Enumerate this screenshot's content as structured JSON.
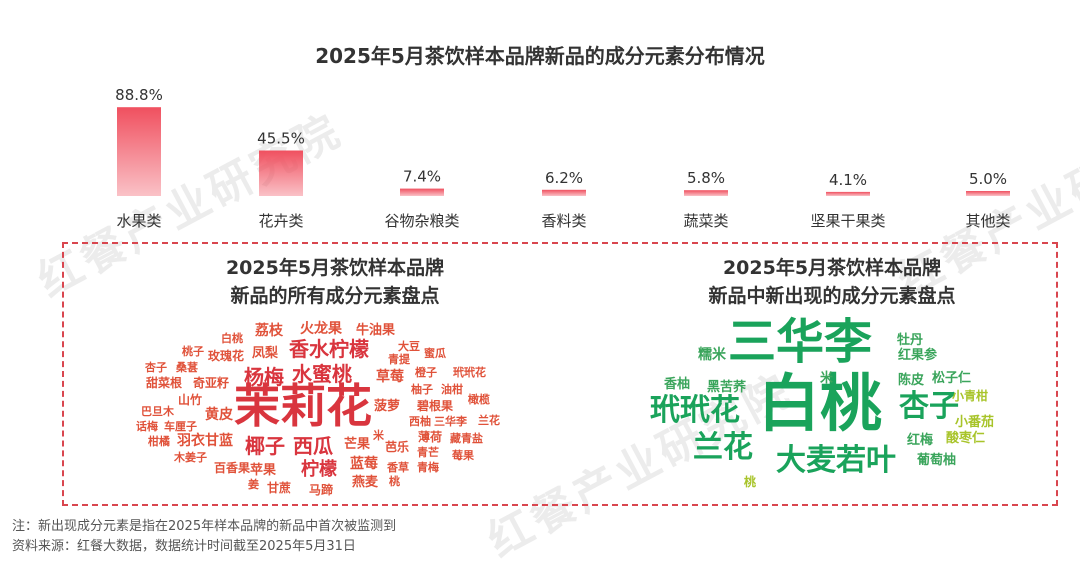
{
  "title": "2025年5月茶饮样本品牌新品的成分元素分布情况",
  "watermark": "红餐产业研究院",
  "chart_data": {
    "type": "bar",
    "categories": [
      "水果类",
      "花卉类",
      "谷物杂粮类",
      "香料类",
      "蔬菜类",
      "坚果干果类",
      "其他类"
    ],
    "values": [
      88.8,
      45.5,
      7.4,
      6.2,
      5.8,
      4.1,
      5.0
    ],
    "value_labels": [
      "88.8%",
      "45.5%",
      "7.4%",
      "6.2%",
      "5.8%",
      "4.1%",
      "5.0%"
    ],
    "ylim": [
      0,
      100
    ],
    "bar_color": "#f0505f"
  },
  "left_panel": {
    "title_line1": "2025年5月茶饮样本品牌",
    "title_line2": "新品的所有成分元素盘点",
    "words": [
      {
        "text": "茉莉花",
        "color": "#d9353e"
      },
      {
        "text": "香水柠檬",
        "color": "#d9353e"
      },
      {
        "text": "杨梅",
        "color": "#d9353e"
      },
      {
        "text": "水蜜桃",
        "color": "#d9353e"
      },
      {
        "text": "椰子",
        "color": "#d9353e"
      },
      {
        "text": "西瓜",
        "color": "#d9353e"
      },
      {
        "text": "柠檬",
        "color": "#d9353e"
      },
      {
        "text": "荔枝",
        "color": "#e0523a"
      },
      {
        "text": "火龙果",
        "color": "#e0523a"
      },
      {
        "text": "牛油果",
        "color": "#e0523a"
      },
      {
        "text": "白桃",
        "color": "#e0523a"
      },
      {
        "text": "玫瑰花",
        "color": "#e0523a"
      },
      {
        "text": "凤梨",
        "color": "#e0523a"
      },
      {
        "text": "大豆",
        "color": "#e0523a"
      },
      {
        "text": "青提",
        "color": "#e0523a"
      },
      {
        "text": "蜜瓜",
        "color": "#e0523a"
      },
      {
        "text": "桃子",
        "color": "#e0523a"
      },
      {
        "text": "杏子",
        "color": "#e0523a"
      },
      {
        "text": "桑葚",
        "color": "#e0523a"
      },
      {
        "text": "草莓",
        "color": "#e0523a"
      },
      {
        "text": "橙子",
        "color": "#e0523a"
      },
      {
        "text": "玳玳花",
        "color": "#e0523a"
      },
      {
        "text": "甜菜根",
        "color": "#e0523a"
      },
      {
        "text": "奇亚籽",
        "color": "#e0523a"
      },
      {
        "text": "柚子",
        "color": "#e0523a"
      },
      {
        "text": "油柑",
        "color": "#e0523a"
      },
      {
        "text": "山竹",
        "color": "#e0523a"
      },
      {
        "text": "菠萝",
        "color": "#e0523a"
      },
      {
        "text": "碧根果",
        "color": "#e0523a"
      },
      {
        "text": "橄榄",
        "color": "#e0523a"
      },
      {
        "text": "巴旦木",
        "color": "#e0523a"
      },
      {
        "text": "黄皮",
        "color": "#e0523a"
      },
      {
        "text": "西柚",
        "color": "#e0523a"
      },
      {
        "text": "三华李",
        "color": "#e0523a"
      },
      {
        "text": "兰花",
        "color": "#e0523a"
      },
      {
        "text": "话梅",
        "color": "#e0523a"
      },
      {
        "text": "车厘子",
        "color": "#e0523a"
      },
      {
        "text": "米",
        "color": "#e0523a"
      },
      {
        "text": "薄荷",
        "color": "#e0523a"
      },
      {
        "text": "藏青盐",
        "color": "#e0523a"
      },
      {
        "text": "柑橘",
        "color": "#e0523a"
      },
      {
        "text": "羽衣甘蓝",
        "color": "#e0523a"
      },
      {
        "text": "芒果",
        "color": "#e0523a"
      },
      {
        "text": "芭乐",
        "color": "#e0523a"
      },
      {
        "text": "青芒",
        "color": "#e0523a"
      },
      {
        "text": "莓果",
        "color": "#e0523a"
      },
      {
        "text": "木姜子",
        "color": "#e0523a"
      },
      {
        "text": "蓝莓",
        "color": "#e0523a"
      },
      {
        "text": "百香果",
        "color": "#e0523a"
      },
      {
        "text": "苹果",
        "color": "#e0523a"
      },
      {
        "text": "香草",
        "color": "#e0523a"
      },
      {
        "text": "青梅",
        "color": "#e0523a"
      },
      {
        "text": "燕麦",
        "color": "#e0523a"
      },
      {
        "text": "姜",
        "color": "#e0523a"
      },
      {
        "text": "甘蔗",
        "color": "#e0523a"
      },
      {
        "text": "马蹄",
        "color": "#e0523a"
      },
      {
        "text": "桃",
        "color": "#e0523a"
      }
    ]
  },
  "right_panel": {
    "title_line1": "2025年5月茶饮样本品牌",
    "title_line2": "新品中新出现的成分元素盘点",
    "words": [
      {
        "text": "三华李",
        "color": "#1aa35b"
      },
      {
        "text": "白桃",
        "color": "#1aa35b"
      },
      {
        "text": "玳玳花",
        "color": "#1aa35b"
      },
      {
        "text": "兰花",
        "color": "#1aa35b"
      },
      {
        "text": "大麦若叶",
        "color": "#1aa35b"
      },
      {
        "text": "杏子",
        "color": "#1aa35b"
      },
      {
        "text": "牡丹",
        "color": "#3ba55c"
      },
      {
        "text": "红果参",
        "color": "#3ba55c"
      },
      {
        "text": "糯米",
        "color": "#3ba55c"
      },
      {
        "text": "香柚",
        "color": "#3ba55c"
      },
      {
        "text": "黑苦荞",
        "color": "#3ba55c"
      },
      {
        "text": "米",
        "color": "#3ba55c"
      },
      {
        "text": "陈皮",
        "color": "#3ba55c"
      },
      {
        "text": "松子仁",
        "color": "#3ba55c"
      },
      {
        "text": "小青柑",
        "color": "#a8c42a"
      },
      {
        "text": "小番茄",
        "color": "#a8c42a"
      },
      {
        "text": "红梅",
        "color": "#3ba55c"
      },
      {
        "text": "酸枣仁",
        "color": "#a8c42a"
      },
      {
        "text": "葡萄柚",
        "color": "#3ba55c"
      },
      {
        "text": "桃",
        "color": "#a8c42a"
      }
    ]
  },
  "footnotes": [
    "注：新出现成分元素是指在2025年样本品牌的新品中首次被监测到",
    "资料来源：红餐大数据，数据统计时间截至2025年5月31日"
  ]
}
